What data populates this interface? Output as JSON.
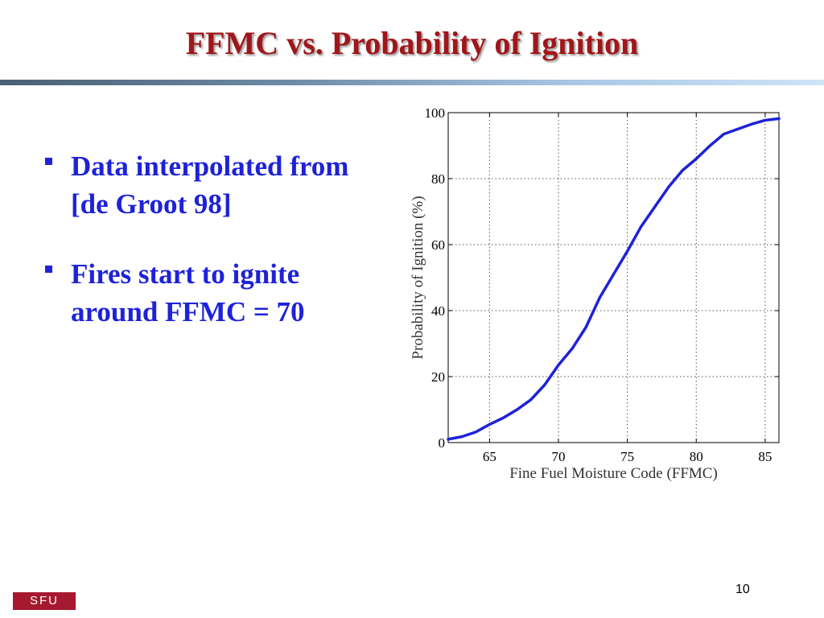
{
  "slide": {
    "title": "FFMC vs. Probability of Ignition",
    "page_number": "10",
    "logo_text": "SFU"
  },
  "bullets": [
    {
      "text": "Data interpolated from [de Groot 98]"
    },
    {
      "text": "Fires start to ignite around FFMC = 70"
    }
  ],
  "colors": {
    "title": "#A0161A",
    "bullet_text": "#1E22D8",
    "curve": "#1E22D8",
    "logo": "#A6192E"
  },
  "chart_data": {
    "type": "line",
    "title": "",
    "xlabel": "Fine Fuel Moisture Code (FFMC)",
    "ylabel": "Probability of Ignition (%)",
    "xlim": [
      62,
      86
    ],
    "ylim": [
      0,
      100
    ],
    "xticks": [
      65,
      70,
      75,
      80,
      85
    ],
    "yticks": [
      0,
      20,
      40,
      60,
      80,
      100
    ],
    "grid": true,
    "series": [
      {
        "x": [
          62,
          63,
          64,
          65,
          66,
          67,
          68,
          69,
          70,
          71,
          72,
          73,
          74,
          75,
          76,
          77,
          78,
          79,
          80,
          81,
          82,
          83,
          84,
          85,
          86
        ],
        "y": [
          1,
          1.8,
          3.2,
          5.5,
          7.5,
          10,
          13,
          17.5,
          23.5,
          28.5,
          35,
          44,
          51,
          58,
          65.5,
          71.5,
          77.5,
          82.5,
          86,
          90,
          93.5,
          95,
          96.5,
          97.7,
          98.2
        ]
      }
    ]
  }
}
